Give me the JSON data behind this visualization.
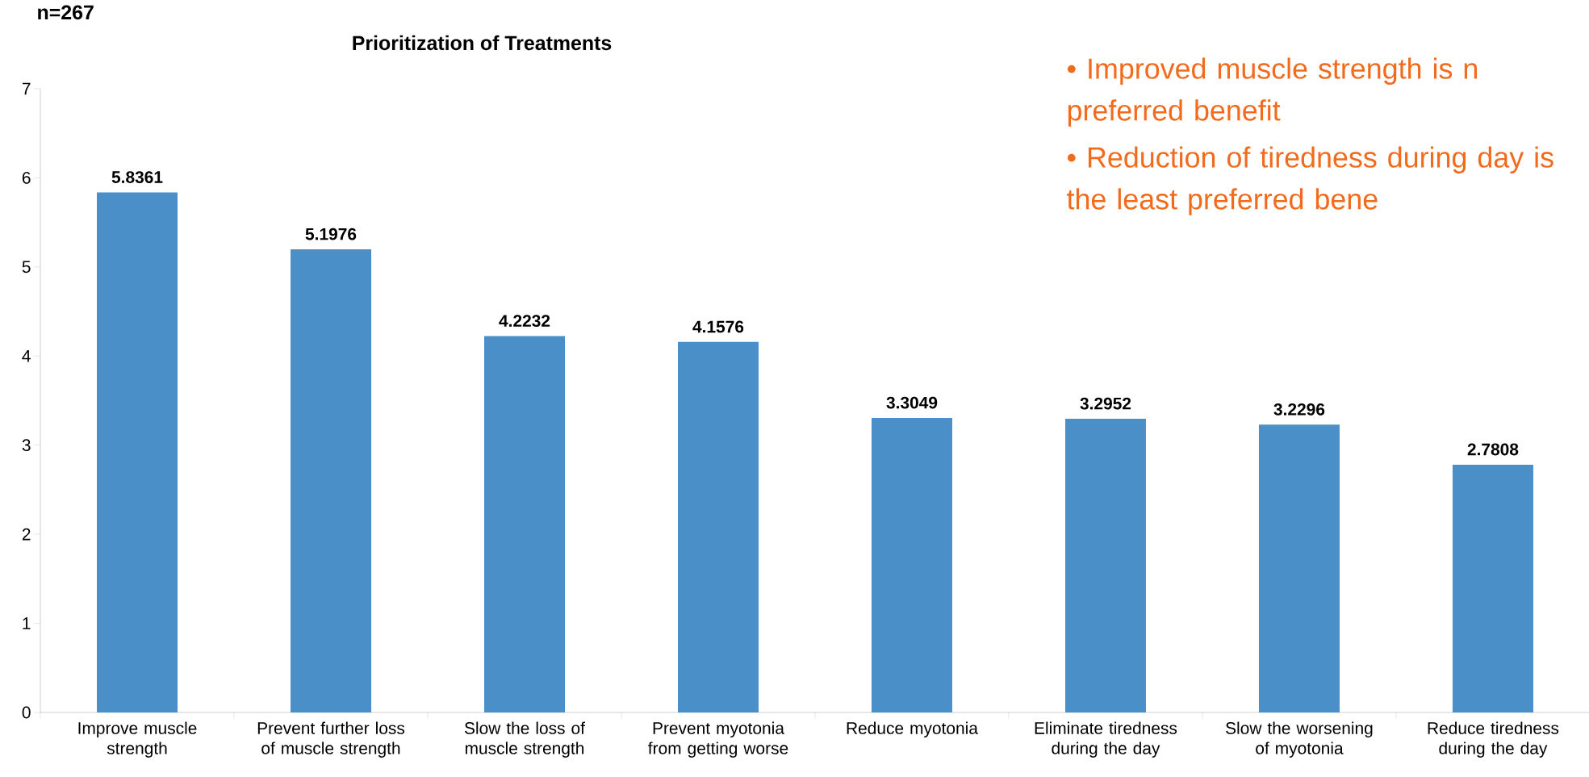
{
  "chart_data": {
    "type": "bar",
    "title": "Prioritization of Treatments",
    "categories": [
      "Improve muscle strength",
      "Prevent further loss of muscle strength",
      "Slow the loss of muscle strength",
      "Prevent myotonia from getting worse",
      "Reduce myotonia",
      "Eliminate tiredness during the day",
      "Slow the worsening of myotonia",
      "Reduce tiredness during the day"
    ],
    "values": [
      5.8361,
      5.1976,
      4.2232,
      4.1576,
      3.3049,
      3.2952,
      3.2296,
      2.7808
    ],
    "color": "#4a8fc8",
    "data_labels": true,
    "ylim": [
      0,
      7
    ],
    "yticks": [
      0,
      1,
      2,
      3,
      4,
      5,
      6,
      7
    ],
    "grid": false,
    "annotations": [
      "n=267",
      "•   Improved muscle strength is n preferred benefit",
      "•   Reduction of tiredness during day is the least preferred bene"
    ]
  }
}
